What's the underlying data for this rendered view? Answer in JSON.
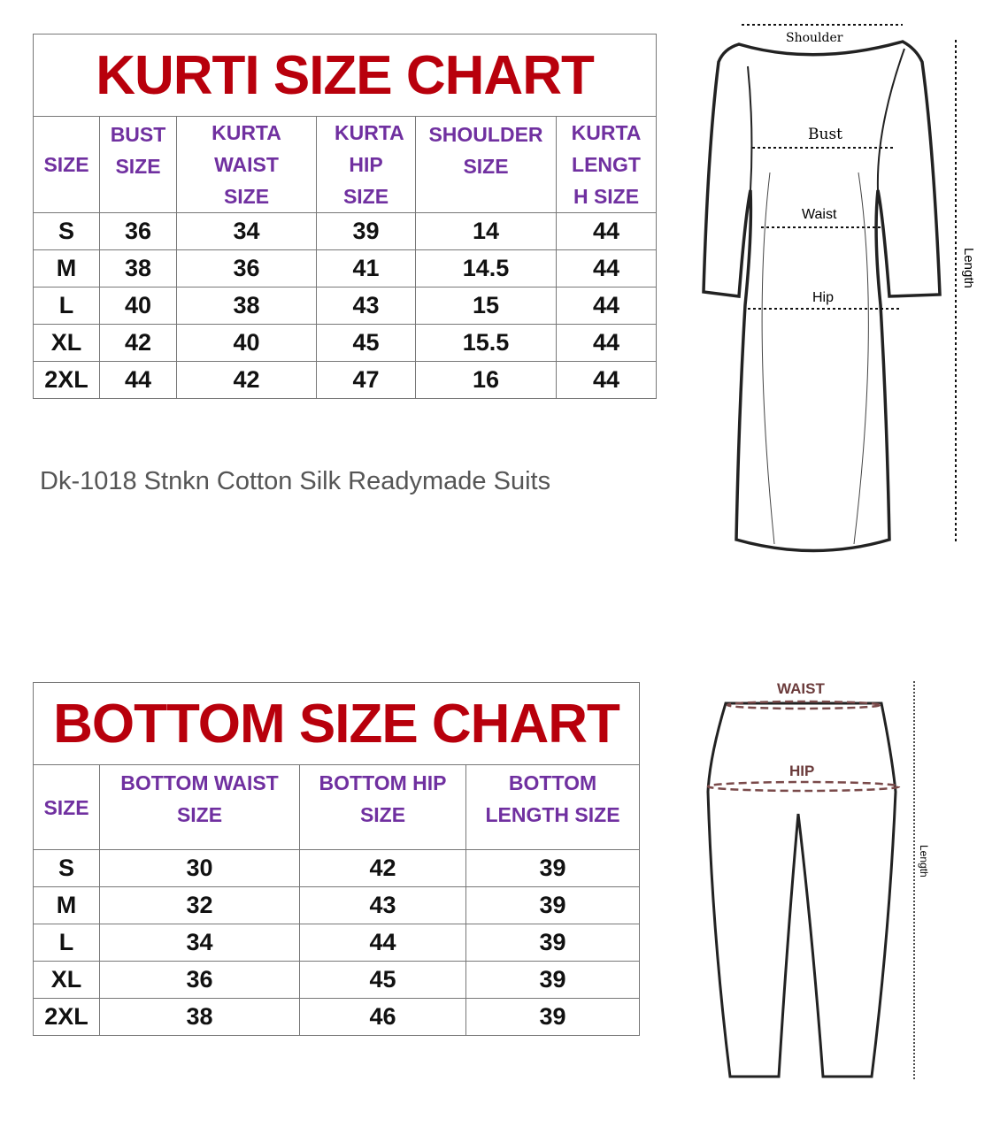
{
  "kurti_chart": {
    "title": "KURTI SIZE CHART",
    "headers": [
      "SIZE",
      "BUST SIZE",
      "KURTA WAIST SIZE",
      "KURTA HIP SIZE",
      "SHOULDER SIZE",
      "KURTA LENGT H SIZE"
    ],
    "rows": [
      [
        "S",
        "36",
        "34",
        "39",
        "14",
        "44"
      ],
      [
        "M",
        "38",
        "36",
        "41",
        "14.5",
        "44"
      ],
      [
        "L",
        "40",
        "38",
        "43",
        "15",
        "44"
      ],
      [
        "XL",
        "42",
        "40",
        "45",
        "15.5",
        "44"
      ],
      [
        "2XL",
        "44",
        "42",
        "47",
        "16",
        "44"
      ]
    ]
  },
  "caption": "Dk-1018 Stnkn Cotton Silk Readymade Suits",
  "kurti_diagram": {
    "shoulder": "Shoulder",
    "bust": "Bust",
    "waist": "Waist",
    "hip": "Hip",
    "length": "Length"
  },
  "bottom_chart": {
    "title": "BOTTOM SIZE CHART",
    "headers": [
      "SIZE",
      "BOTTOM WAIST SIZE",
      "BOTTOM HIP SIZE",
      "BOTTOM LENGTH SIZE"
    ],
    "rows": [
      [
        "S",
        "30",
        "42",
        "39"
      ],
      [
        "M",
        "32",
        "43",
        "39"
      ],
      [
        "L",
        "34",
        "44",
        "39"
      ],
      [
        "XL",
        "36",
        "45",
        "39"
      ],
      [
        "2XL",
        "38",
        "46",
        "39"
      ]
    ]
  },
  "bottom_diagram": {
    "waist": "WAIST",
    "hip": "HIP",
    "length": "Length"
  },
  "colors": {
    "title": "#b8000c",
    "header": "#7030a0",
    "size_label": "#1f6fa8"
  }
}
